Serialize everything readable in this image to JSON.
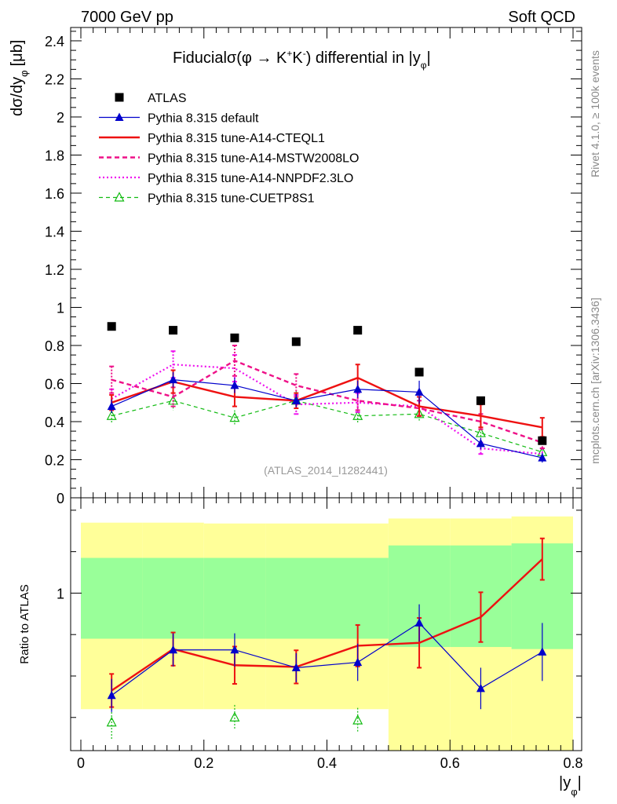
{
  "header": {
    "left": "7000 GeV pp",
    "right": "Soft QCD"
  },
  "side_labels": {
    "rivet": "Rivet 4.1.0, ≥ 100k events",
    "mcplots": "mcplots.cern.ch [arXiv:1306.3436]"
  },
  "chart_data": [
    {
      "type": "scatter",
      "panel": "main",
      "title": "Fiducial σ(φ → K⁺K⁻) differential in |yφ|",
      "title_parts": {
        "prefix": "Fiducial",
        "sigma": "σ(φ →  K",
        "plus": "+",
        "k2": "K",
        "minus": "-",
        "suffix": ") differential in |y",
        "sub": "φ",
        "end": "|"
      },
      "ylabel": "dσ/dyφ [μb]",
      "ylabel_parts": {
        "main": "dσ/dy",
        "sub": "φ",
        "unit": "[μb]"
      },
      "xlabel": "|yφ|",
      "watermark": "(ATLAS_2014_I1282441)",
      "xlim": [
        0,
        0.8
      ],
      "ylim": [
        0,
        2.47
      ],
      "yticks": [
        0,
        0.2,
        0.4,
        0.6,
        0.8,
        1,
        1.2,
        1.4,
        1.6,
        1.8,
        2,
        2.2,
        2.4
      ],
      "ytick_labels": [
        "0",
        "0.2",
        "0.4",
        "0.6",
        "0.8",
        "1",
        "1.2",
        "1.4",
        "1.6",
        "1.8",
        "2",
        "2.2",
        "2.4"
      ],
      "x": [
        0.05,
        0.15,
        0.25,
        0.35,
        0.45,
        0.55,
        0.65,
        0.75
      ],
      "series": [
        {
          "name": "ATLAS",
          "style": "data",
          "color": "#000000",
          "values": [
            0.9,
            0.88,
            0.84,
            0.82,
            0.88,
            0.66,
            0.51,
            0.3
          ]
        },
        {
          "name": "Pythia 8.315 default",
          "style": "line-triangle",
          "color": "#0000cc",
          "values": [
            0.48,
            0.62,
            0.59,
            0.51,
            0.57,
            0.555,
            0.285,
            0.21
          ],
          "errors": [
            0.035,
            0.04,
            0.04,
            0.035,
            0.045,
            0.06,
            0.03,
            0.025
          ]
        },
        {
          "name": "Pythia 8.315 tune-A14-CTEQL1",
          "style": "thick-solid",
          "color": "#ee1111",
          "values": [
            0.5,
            0.61,
            0.53,
            0.51,
            0.63,
            0.48,
            0.43,
            0.37
          ],
          "errors": [
            0.04,
            0.06,
            0.05,
            0.04,
            0.07,
            0.05,
            0.06,
            0.05
          ]
        },
        {
          "name": "Pythia 8.315 tune-A14-MSTW2008LO",
          "style": "thick-dashed",
          "color": "#ee1188",
          "values": [
            0.62,
            0.53,
            0.72,
            0.59,
            0.51,
            0.47,
            0.4,
            0.29
          ],
          "errors": [
            0.07,
            0.05,
            0.08,
            0.06,
            0.05,
            0.04,
            0.04,
            0.03
          ]
        },
        {
          "name": "Pythia 8.315 tune-A14-NNPDF2.3LO",
          "style": "dotted",
          "color": "#ee11ee",
          "values": [
            0.52,
            0.7,
            0.68,
            0.49,
            0.5,
            0.48,
            0.26,
            0.23
          ],
          "errors": [
            0.05,
            0.07,
            0.07,
            0.05,
            0.05,
            0.05,
            0.03,
            0.03
          ]
        },
        {
          "name": "Pythia 8.315 tune-CUETP8S1",
          "style": "dashed-open-triangle",
          "color": "#11bb11",
          "values": [
            0.43,
            0.51,
            0.42,
            0.51,
            0.43,
            0.44,
            0.34,
            0.24
          ],
          "errors": [
            0.04,
            0.05,
            0.04,
            0.05,
            0.04,
            0.04,
            0.04,
            0.03
          ]
        }
      ]
    },
    {
      "type": "line",
      "panel": "ratio",
      "ylabel": "Ratio to ATLAS",
      "xlabel": "|yφ|",
      "xlabel_parts": {
        "main": "|y",
        "sub": "φ",
        "end": "|"
      },
      "xlim": [
        0,
        0.8
      ],
      "ylim": [
        0.62,
        1.23
      ],
      "yticks": [
        1
      ],
      "ytick_labels": [
        "1"
      ],
      "xticks": [
        0,
        0.2,
        0.4,
        0.6,
        0.8
      ],
      "xtick_labels": [
        "0",
        "0.2",
        "0.4",
        "0.6",
        "0.8"
      ],
      "x": [
        0.05,
        0.15,
        0.25,
        0.35,
        0.45,
        0.55,
        0.65,
        0.75
      ],
      "bands": {
        "edges": [
          0,
          0.1,
          0.2,
          0.3,
          0.4,
          0.5,
          0.6,
          0.7,
          0.8
        ],
        "yellow": {
          "color": "#ffff99",
          "lo": [
            0.72,
            0.72,
            0.72,
            0.72,
            0.72,
            0.62,
            0.62,
            0.62
          ],
          "hi": [
            1.17,
            1.17,
            1.168,
            1.168,
            1.168,
            1.18,
            1.18,
            1.185
          ]
        },
        "green": {
          "color": "#99ff99",
          "lo": [
            0.89,
            0.89,
            0.89,
            0.89,
            0.89,
            0.87,
            0.87,
            0.865
          ],
          "hi": [
            1.085,
            1.085,
            1.085,
            1.085,
            1.085,
            1.115,
            1.115,
            1.12
          ]
        }
      },
      "series": [
        {
          "name": "Pythia 8.315 default",
          "style": "line-triangle",
          "color": "#0000cc",
          "values": [
            0.753,
            0.863,
            0.863,
            0.82,
            0.833,
            0.928,
            0.77,
            0.858
          ],
          "errors": [
            0.04,
            0.04,
            0.04,
            0.035,
            0.045,
            0.045,
            0.05,
            0.07
          ]
        },
        {
          "name": "Pythia 8.315 tune-A14-CTEQL1",
          "style": "thick-solid",
          "color": "#ee1111",
          "values": [
            0.765,
            0.865,
            0.826,
            0.822,
            0.873,
            0.88,
            0.942,
            1.082
          ],
          "errors": [
            0.04,
            0.04,
            0.045,
            0.04,
            0.05,
            0.06,
            0.06,
            0.05
          ]
        },
        {
          "name": "Pythia 8.315 tune-CUETP8S1",
          "style": "dashed-open-triangle",
          "color": "#11bb11",
          "values": [
            0.688,
            null,
            0.7,
            null,
            0.693,
            null,
            null,
            null
          ],
          "errors": [
            0.04,
            null,
            0.03,
            null,
            0.03,
            null,
            null,
            null
          ]
        }
      ]
    }
  ]
}
